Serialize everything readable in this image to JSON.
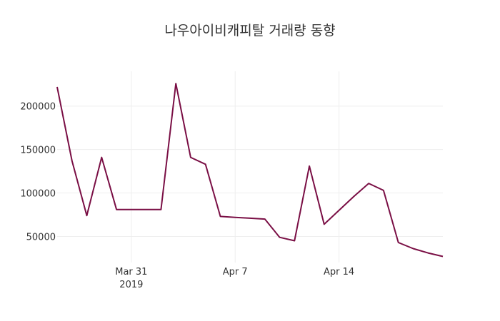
{
  "chart_data": {
    "type": "line",
    "title": "나우아이비캐피탈 거래량 동향",
    "xlabel": "",
    "ylabel": "",
    "x": [
      "2019-03-27",
      "2019-03-28",
      "2019-03-29",
      "2019-03-30",
      "2019-03-31",
      "2019-04-01",
      "2019-04-02",
      "2019-04-03",
      "2019-04-04",
      "2019-04-05",
      "2019-04-06",
      "2019-04-07",
      "2019-04-08",
      "2019-04-09",
      "2019-04-10",
      "2019-04-11",
      "2019-04-12",
      "2019-04-13",
      "2019-04-14",
      "2019-04-15",
      "2019-04-16",
      "2019-04-17",
      "2019-04-18",
      "2019-04-19",
      "2019-04-20",
      "2019-04-21",
      "2019-04-22"
    ],
    "series": [
      {
        "color": "#7a0f45",
        "values": [
          222000,
          137000,
          74000,
          141000,
          81000,
          81000,
          81000,
          81000,
          226000,
          141000,
          133000,
          73000,
          72000,
          71000,
          70000,
          49000,
          45000,
          131000,
          64000,
          80000,
          96000,
          111000,
          103000,
          43000,
          36000,
          31000,
          27000
        ]
      }
    ],
    "x_ticks": [
      {
        "date": "2019-04-01",
        "label": "Mar 31",
        "sublabel": "2019"
      },
      {
        "date": "2019-04-08",
        "label": "Apr 7",
        "sublabel": ""
      },
      {
        "date": "2019-04-15",
        "label": "Apr 14",
        "sublabel": ""
      }
    ],
    "y_ticks": [
      50000,
      100000,
      150000,
      200000
    ],
    "y_tick_labels": [
      "50000",
      "100000",
      "150000",
      "200000"
    ],
    "ylim": [
      20000,
      240000
    ],
    "grid": true,
    "legend": "none"
  }
}
